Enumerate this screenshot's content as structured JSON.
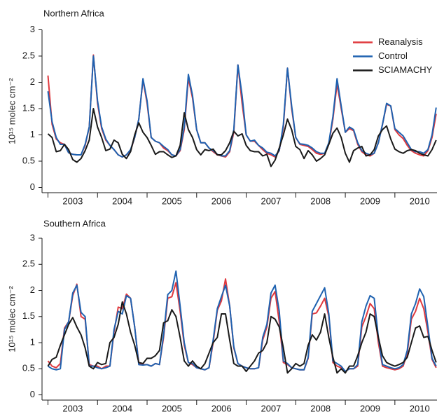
{
  "chart_data": [
    {
      "type": "line",
      "title": "Northern Africa",
      "y_label": "10¹⁵ molec cm⁻²",
      "x": [
        2003,
        2003.083,
        2003.167,
        2003.25,
        2003.333,
        2003.417,
        2003.5,
        2003.583,
        2003.667,
        2003.75,
        2003.833,
        2003.917,
        2004,
        2004.083,
        2004.167,
        2004.25,
        2004.333,
        2004.417,
        2004.5,
        2004.583,
        2004.667,
        2004.75,
        2004.833,
        2004.917,
        2005,
        2005.083,
        2005.167,
        2005.25,
        2005.333,
        2005.417,
        2005.5,
        2005.583,
        2005.667,
        2005.75,
        2005.833,
        2005.917,
        2006,
        2006.083,
        2006.167,
        2006.25,
        2006.333,
        2006.417,
        2006.5,
        2006.583,
        2006.667,
        2006.75,
        2006.833,
        2006.917,
        2007,
        2007.083,
        2007.167,
        2007.25,
        2007.333,
        2007.417,
        2007.5,
        2007.583,
        2007.667,
        2007.75,
        2007.833,
        2007.917,
        2008,
        2008.083,
        2008.167,
        2008.25,
        2008.333,
        2008.417,
        2008.5,
        2008.583,
        2008.667,
        2008.75,
        2008.833,
        2008.917,
        2009,
        2009.083,
        2009.167,
        2009.25,
        2009.333,
        2009.417,
        2009.5,
        2009.583,
        2009.667,
        2009.75,
        2009.833,
        2009.917,
        2010,
        2010.083,
        2010.167,
        2010.25,
        2010.333,
        2010.417,
        2010.5,
        2010.583,
        2010.667,
        2010.75,
        2010.833
      ],
      "series": [
        {
          "name": "Reanalysis",
          "color": "#e0393e",
          "values": [
            2.13,
            1.2,
            0.92,
            0.85,
            0.82,
            0.66,
            0.63,
            0.62,
            0.62,
            0.8,
            1.15,
            2.52,
            1.6,
            1.12,
            0.9,
            0.8,
            0.72,
            0.62,
            0.58,
            0.62,
            0.7,
            0.95,
            1.3,
            2.05,
            1.6,
            0.95,
            0.88,
            0.85,
            0.75,
            0.7,
            0.62,
            0.6,
            0.7,
            1.1,
            2.08,
            1.7,
            1.1,
            0.85,
            0.85,
            0.75,
            0.68,
            0.62,
            0.6,
            0.58,
            0.68,
            1.05,
            2.33,
            1.6,
            1.0,
            0.88,
            0.88,
            0.8,
            0.72,
            0.65,
            0.62,
            0.58,
            0.7,
            1.15,
            2.27,
            1.5,
            0.95,
            0.82,
            0.8,
            0.78,
            0.72,
            0.65,
            0.63,
            0.65,
            0.82,
            1.3,
            1.97,
            1.5,
            1.05,
            1.12,
            1.08,
            0.82,
            0.68,
            0.62,
            0.6,
            0.65,
            0.85,
            1.2,
            1.58,
            1.55,
            1.1,
            1.0,
            0.93,
            0.8,
            0.7,
            0.65,
            0.62,
            0.6,
            0.7,
            0.95,
            1.4
          ]
        },
        {
          "name": "Control",
          "color": "#1f62b0",
          "values": [
            1.83,
            1.25,
            0.95,
            0.82,
            0.82,
            0.66,
            0.63,
            0.62,
            0.62,
            0.82,
            1.15,
            2.5,
            1.65,
            1.15,
            0.92,
            0.8,
            0.72,
            0.62,
            0.58,
            0.62,
            0.72,
            0.95,
            1.3,
            2.07,
            1.65,
            0.95,
            0.88,
            0.85,
            0.78,
            0.72,
            0.62,
            0.6,
            0.72,
            1.15,
            2.15,
            1.75,
            1.1,
            0.85,
            0.85,
            0.75,
            0.7,
            0.63,
            0.6,
            0.6,
            0.7,
            1.1,
            2.33,
            1.75,
            1.0,
            0.88,
            0.9,
            0.8,
            0.75,
            0.67,
            0.65,
            0.6,
            0.7,
            1.2,
            2.27,
            1.55,
            0.95,
            0.83,
            0.82,
            0.8,
            0.75,
            0.68,
            0.65,
            0.65,
            0.85,
            1.35,
            2.07,
            1.55,
            1.05,
            1.15,
            1.1,
            0.85,
            0.7,
            0.65,
            0.62,
            0.65,
            0.85,
            1.2,
            1.6,
            1.55,
            1.12,
            1.05,
            0.98,
            0.85,
            0.72,
            0.68,
            0.68,
            0.65,
            0.72,
            1.0,
            1.52
          ]
        },
        {
          "name": "SCIAMACHY",
          "color": "#1a1a1a",
          "values": [
            1.02,
            0.95,
            0.68,
            0.7,
            0.82,
            0.72,
            0.53,
            0.48,
            0.55,
            0.7,
            0.9,
            1.5,
            1.15,
            0.95,
            0.7,
            0.73,
            0.9,
            0.85,
            0.63,
            0.55,
            0.68,
            1.0,
            1.23,
            1.05,
            0.95,
            0.8,
            0.63,
            0.68,
            0.68,
            0.62,
            0.57,
            0.6,
            0.8,
            1.42,
            1.1,
            0.95,
            0.72,
            0.62,
            0.72,
            0.7,
            0.73,
            0.62,
            0.62,
            0.7,
            0.85,
            1.07,
            0.98,
            1.02,
            0.8,
            0.7,
            0.68,
            0.68,
            0.6,
            0.63,
            0.4,
            0.52,
            0.75,
            1.0,
            1.3,
            1.1,
            0.78,
            0.72,
            0.55,
            0.7,
            0.62,
            0.5,
            0.55,
            0.62,
            0.82,
            1.03,
            1.13,
            0.95,
            0.65,
            0.48,
            0.7,
            0.75,
            0.78,
            0.6,
            0.62,
            0.72,
            0.98,
            1.1,
            1.17,
            0.92,
            0.73,
            0.68,
            0.65,
            0.7,
            0.72,
            0.7,
            0.65,
            0.62,
            0.6,
            0.72,
            0.9
          ]
        }
      ],
      "xlim": [
        2002.88,
        2010.85
      ],
      "ylim": [
        -0.1,
        3
      ],
      "xticks": [
        {
          "value": 2003.5,
          "label": "2003"
        },
        {
          "value": 2004.5,
          "label": "2004"
        },
        {
          "value": 2005.5,
          "label": "2005"
        },
        {
          "value": 2006.5,
          "label": "2006"
        },
        {
          "value": 2007.5,
          "label": "2007"
        },
        {
          "value": 2008.5,
          "label": "2008"
        },
        {
          "value": 2009.5,
          "label": "2009"
        },
        {
          "value": 2010.5,
          "label": "2010"
        }
      ],
      "year_ticks": [
        2003,
        2004,
        2005,
        2006,
        2007,
        2008,
        2009,
        2010
      ],
      "yticks": [
        0,
        0.5,
        1,
        1.5,
        2,
        2.5,
        3
      ],
      "legend": "upper right"
    },
    {
      "type": "line",
      "title": "Southern Africa",
      "y_label": "10¹⁵ molec cm⁻²",
      "x": [
        2003,
        2003.083,
        2003.167,
        2003.25,
        2003.333,
        2003.417,
        2003.5,
        2003.583,
        2003.667,
        2003.75,
        2003.833,
        2003.917,
        2004,
        2004.083,
        2004.167,
        2004.25,
        2004.333,
        2004.417,
        2004.5,
        2004.583,
        2004.667,
        2004.75,
        2004.833,
        2004.917,
        2005,
        2005.083,
        2005.167,
        2005.25,
        2005.333,
        2005.417,
        2005.5,
        2005.583,
        2005.667,
        2005.75,
        2005.833,
        2005.917,
        2006,
        2006.083,
        2006.167,
        2006.25,
        2006.333,
        2006.417,
        2006.5,
        2006.583,
        2006.667,
        2006.75,
        2006.833,
        2006.917,
        2007,
        2007.083,
        2007.167,
        2007.25,
        2007.333,
        2007.417,
        2007.5,
        2007.583,
        2007.667,
        2007.75,
        2007.833,
        2007.917,
        2008,
        2008.083,
        2008.167,
        2008.25,
        2008.333,
        2008.417,
        2008.5,
        2008.583,
        2008.667,
        2008.75,
        2008.833,
        2008.917,
        2009,
        2009.083,
        2009.167,
        2009.25,
        2009.333,
        2009.417,
        2009.5,
        2009.583,
        2009.667,
        2009.75,
        2009.833,
        2009.917,
        2010,
        2010.083,
        2010.167,
        2010.25,
        2010.333,
        2010.417,
        2010.5,
        2010.583,
        2010.667,
        2010.75,
        2010.833
      ],
      "series": [
        {
          "color": "#e0393e",
          "values": [
            0.65,
            0.55,
            0.52,
            0.6,
            1.28,
            1.4,
            1.9,
            2.12,
            1.5,
            1.45,
            0.58,
            0.55,
            0.55,
            0.5,
            0.55,
            0.55,
            1.2,
            1.68,
            1.65,
            1.93,
            1.85,
            1.3,
            0.6,
            0.58,
            0.58,
            0.55,
            0.6,
            0.58,
            1.1,
            1.85,
            1.88,
            2.15,
            1.6,
            0.95,
            0.62,
            0.58,
            0.52,
            0.5,
            0.48,
            0.52,
            1.0,
            1.62,
            1.8,
            2.22,
            1.7,
            0.9,
            0.6,
            0.55,
            0.52,
            0.5,
            0.5,
            0.52,
            1.05,
            1.3,
            1.85,
            1.98,
            1.4,
            0.62,
            0.58,
            0.52,
            0.5,
            0.48,
            0.48,
            0.7,
            1.55,
            1.57,
            1.7,
            1.85,
            1.5,
            0.62,
            0.55,
            0.52,
            0.45,
            0.5,
            0.5,
            0.55,
            1.3,
            1.5,
            1.75,
            1.65,
            1.0,
            0.55,
            0.52,
            0.5,
            0.48,
            0.5,
            0.55,
            0.8,
            1.45,
            1.6,
            1.85,
            1.65,
            1.2,
            0.68,
            0.52
          ]
        },
        {
          "color": "#1f62b0",
          "values": [
            0.55,
            0.5,
            0.48,
            0.5,
            1.25,
            1.4,
            1.95,
            2.1,
            1.58,
            1.5,
            0.55,
            0.55,
            0.52,
            0.5,
            0.52,
            0.55,
            1.25,
            1.6,
            1.55,
            1.9,
            1.85,
            1.3,
            0.58,
            0.57,
            0.58,
            0.55,
            0.6,
            0.58,
            1.15,
            1.92,
            2.0,
            2.37,
            1.7,
            1.0,
            0.62,
            0.6,
            0.52,
            0.5,
            0.48,
            0.52,
            1.05,
            1.65,
            1.88,
            2.1,
            1.7,
            0.92,
            0.6,
            0.55,
            0.52,
            0.5,
            0.5,
            0.52,
            1.1,
            1.35,
            1.95,
            2.1,
            1.6,
            0.65,
            0.6,
            0.52,
            0.5,
            0.48,
            0.48,
            0.72,
            1.6,
            1.75,
            1.9,
            2.05,
            1.55,
            0.65,
            0.6,
            0.55,
            0.45,
            0.5,
            0.5,
            0.58,
            1.4,
            1.7,
            1.9,
            1.85,
            1.1,
            0.58,
            0.55,
            0.52,
            0.5,
            0.52,
            0.58,
            0.85,
            1.55,
            1.75,
            2.03,
            1.88,
            1.3,
            0.7,
            0.55
          ]
        },
        {
          "color": "#1a1a1a",
          "values": [
            0.55,
            0.68,
            0.72,
            0.95,
            1.15,
            1.35,
            1.48,
            1.3,
            1.15,
            0.9,
            0.55,
            0.5,
            0.62,
            0.58,
            0.6,
            1.0,
            1.1,
            1.35,
            1.78,
            1.55,
            1.2,
            0.95,
            0.62,
            0.6,
            0.7,
            0.7,
            0.75,
            0.85,
            1.38,
            1.42,
            1.63,
            1.5,
            1.1,
            0.65,
            0.55,
            0.65,
            0.55,
            0.5,
            0.6,
            0.8,
            1.0,
            1.1,
            1.55,
            1.55,
            1.05,
            0.6,
            0.55,
            0.55,
            0.45,
            0.55,
            0.65,
            0.8,
            0.85,
            1.0,
            1.5,
            1.45,
            1.3,
            0.9,
            0.42,
            0.5,
            0.6,
            0.55,
            0.6,
            0.95,
            1.15,
            1.05,
            1.2,
            1.55,
            1.1,
            0.72,
            0.42,
            0.5,
            0.42,
            0.55,
            0.55,
            0.75,
            1.0,
            1.2,
            1.55,
            1.5,
            1.1,
            0.75,
            0.62,
            0.58,
            0.55,
            0.58,
            0.62,
            0.72,
            1.0,
            1.28,
            1.32,
            1.1,
            1.12,
            0.85,
            0.62
          ]
        }
      ],
      "xlim": [
        2002.88,
        2010.85
      ],
      "ylim": [
        -0.1,
        3
      ],
      "xticks": [
        {
          "value": 2003.5,
          "label": "2003"
        },
        {
          "value": 2004.5,
          "label": "2004"
        },
        {
          "value": 2005.5,
          "label": "2005"
        },
        {
          "value": 2006.5,
          "label": "2006"
        },
        {
          "value": 2007.5,
          "label": "2007"
        },
        {
          "value": 2008.5,
          "label": "2008"
        },
        {
          "value": 2009.5,
          "label": "2009"
        },
        {
          "value": 2010.5,
          "label": "2010"
        }
      ],
      "year_ticks": [
        2003,
        2004,
        2005,
        2006,
        2007,
        2008,
        2009,
        2010
      ],
      "yticks": [
        0,
        0.5,
        1,
        1.5,
        2,
        2.5,
        3
      ]
    }
  ]
}
